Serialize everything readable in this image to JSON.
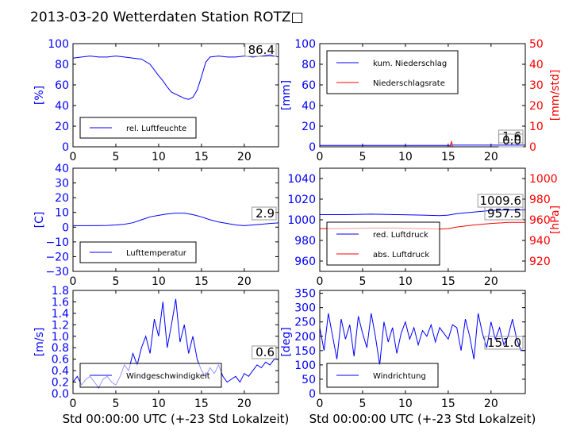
{
  "title": "2013-03-20 Wetterdaten Station ROTZ□",
  "colors": {
    "left_axis": "#0000ff",
    "right_axis": "#ff0000",
    "series_primary": "#0000ff",
    "series_secondary": "#ff0000",
    "frame": "#000000"
  },
  "chart_data": [
    {
      "type": "line",
      "ylabel": "[%]",
      "xlabel": "",
      "xlim": [
        0,
        24
      ],
      "xticks": [
        "0",
        "5",
        "10",
        "15",
        "20"
      ],
      "ylim": [
        0,
        100
      ],
      "yticks": [
        "0",
        "20",
        "40",
        "60",
        "80",
        "100"
      ],
      "legend": [
        "rel. Luftfeuchte"
      ],
      "legend_placement": "lower-left",
      "annotation": "86.4",
      "series": [
        {
          "name": "rel. Luftfeuchte",
          "x": [
            0,
            1,
            2,
            3,
            4,
            5,
            6,
            7,
            8,
            9,
            10,
            10.5,
            11,
            11.5,
            12,
            12.5,
            13,
            13.5,
            14,
            14.5,
            15,
            15.5,
            16,
            17,
            18,
            19,
            20,
            21,
            22,
            23,
            24
          ],
          "values": [
            86,
            87,
            88,
            87,
            87,
            88,
            87,
            86,
            85,
            80,
            69,
            64,
            58,
            53,
            51,
            49,
            47,
            46,
            48,
            55,
            68,
            82,
            87,
            88,
            87,
            87,
            88,
            87,
            88,
            89,
            87
          ]
        }
      ]
    },
    {
      "type": "line",
      "ylabel": "[mm]",
      "y2label": "[mm/std]",
      "xlabel": "",
      "xlim": [
        0,
        24
      ],
      "xticks": [
        "0",
        "5",
        "10",
        "15",
        "20"
      ],
      "ylim": [
        0,
        100
      ],
      "yticks": [
        "0",
        "20",
        "40",
        "60",
        "80",
        "100"
      ],
      "y2lim": [
        0,
        50
      ],
      "y2ticks": [
        "0",
        "10",
        "20",
        "30",
        "40",
        "50"
      ],
      "legend": [
        "kum. Niederschlag",
        "Niederschlagsrate"
      ],
      "legend_placement": "upper-left",
      "annotations": [
        "1.6",
        "0.0"
      ],
      "series": [
        {
          "name": "kum. Niederschlag",
          "axis": "left",
          "x": [
            0,
            15.2,
            15.4,
            24
          ],
          "values": [
            1.3,
            1.3,
            1.6,
            1.6
          ]
        },
        {
          "name": "Niederschlagsrate",
          "axis": "right",
          "x": [
            0,
            15.2,
            15.3,
            15.4,
            15.5,
            24
          ],
          "values": [
            0,
            0,
            1.5,
            2.5,
            0,
            0
          ]
        }
      ]
    },
    {
      "type": "line",
      "ylabel": "[C]",
      "xlabel": "",
      "xlim": [
        0,
        24
      ],
      "xticks": [
        "0",
        "5",
        "10",
        "15",
        "20"
      ],
      "ylim": [
        -30,
        40
      ],
      "yticks": [
        "−30",
        "−20",
        "−10",
        "0",
        "10",
        "20",
        "30",
        "40"
      ],
      "legend": [
        "Lufttemperatur"
      ],
      "legend_placement": "lower-left",
      "annotation": "2.9",
      "series": [
        {
          "name": "Lufttemperatur",
          "x": [
            0,
            2,
            4,
            5,
            6,
            7,
            8,
            9,
            10,
            11,
            12,
            13,
            14,
            15,
            16,
            17,
            18,
            19,
            20,
            21,
            22,
            23,
            24
          ],
          "values": [
            1,
            1,
            1.2,
            1.5,
            2,
            3,
            5,
            7,
            8,
            9,
            9.5,
            9.5,
            8.5,
            7,
            5,
            3.5,
            2.5,
            1.5,
            1,
            1.5,
            2,
            2.5,
            2.9
          ]
        }
      ]
    },
    {
      "type": "line",
      "ylabel": "",
      "y2label": "[hPa]",
      "xlabel": "",
      "xlim": [
        0,
        24
      ],
      "xticks": [
        "0",
        "5",
        "10",
        "15",
        "20"
      ],
      "ylim": [
        950,
        1050
      ],
      "yticks": [
        "960",
        "980",
        "1000",
        "1020",
        "1040"
      ],
      "y2lim": [
        910,
        1010
      ],
      "y2ticks": [
        "920",
        "940",
        "960",
        "980",
        "1000"
      ],
      "legend": [
        "red. Luftdruck",
        "abs. Luftdruck"
      ],
      "legend_placement": "lower-left",
      "annotations": [
        "1009.6",
        "957.5"
      ],
      "series": [
        {
          "name": "red. Luftdruck",
          "axis": "left",
          "x": [
            0,
            3,
            6,
            9,
            12,
            14,
            15,
            16,
            18,
            20,
            22,
            24
          ],
          "values": [
            1005,
            1005,
            1005.5,
            1005,
            1004.5,
            1004,
            1004.5,
            1006,
            1007.5,
            1009,
            1009.6,
            1009.5
          ]
        },
        {
          "name": "abs. Luftdruck",
          "axis": "right",
          "x": [
            0,
            3,
            6,
            9,
            12,
            14,
            15,
            16,
            18,
            20,
            22,
            24
          ],
          "values": [
            951.5,
            951.5,
            952,
            952,
            951.5,
            951,
            951.5,
            953,
            955,
            956.5,
            957.5,
            957.5
          ]
        }
      ]
    },
    {
      "type": "line",
      "ylabel": "[m/s]",
      "xlabel": "Std 00:00:00 UTC (+-23 Std Lokalzeit)",
      "xlim": [
        0,
        24
      ],
      "xticks": [
        "0",
        "5",
        "10",
        "15",
        "20"
      ],
      "ylim": [
        0,
        1.8
      ],
      "yticks": [
        "0.0",
        "0.2",
        "0.4",
        "0.6",
        "0.8",
        "1.0",
        "1.2",
        "1.4",
        "1.6",
        "1.8"
      ],
      "legend": [
        "Windgeschwindigkeit"
      ],
      "legend_placement": "lower-left",
      "annotation": "0.6",
      "series": [
        {
          "name": "Windgeschwindigkeit",
          "x": [
            0,
            0.5,
            1,
            1.5,
            2,
            2.5,
            3,
            3.5,
            4,
            4.5,
            5,
            5.5,
            6,
            6.5,
            7,
            7.5,
            8,
            8.5,
            9,
            9.5,
            10,
            10.5,
            11,
            11.5,
            12,
            12.5,
            13,
            13.5,
            14,
            14.5,
            15,
            15.5,
            16,
            16.5,
            17,
            17.5,
            18,
            18.5,
            19,
            19.5,
            20,
            20.5,
            21,
            21.5,
            22,
            22.5,
            23,
            23.5,
            24
          ],
          "values": [
            0.2,
            0.3,
            0.15,
            0.25,
            0.3,
            0.2,
            0.1,
            0.25,
            0.3,
            0.2,
            0.15,
            0.3,
            0.5,
            0.4,
            0.7,
            0.5,
            0.8,
            1.0,
            0.7,
            1.3,
            1.0,
            1.6,
            0.8,
            1.2,
            1.65,
            0.9,
            1.2,
            0.7,
            1.0,
            0.6,
            0.4,
            0.3,
            0.45,
            0.35,
            0.5,
            0.3,
            0.2,
            0.25,
            0.3,
            0.2,
            0.35,
            0.3,
            0.4,
            0.5,
            0.45,
            0.55,
            0.5,
            0.6,
            0.6
          ]
        }
      ]
    },
    {
      "type": "line",
      "ylabel": "[deg]",
      "xlabel": "Std 00:00:00 UTC (+-23 Std Lokalzeit)",
      "xlim": [
        0,
        24
      ],
      "xticks": [
        "0",
        "5",
        "10",
        "15",
        "20"
      ],
      "ylim": [
        0,
        360
      ],
      "yticks": [
        "0",
        "50",
        "100",
        "150",
        "200",
        "250",
        "300",
        "350"
      ],
      "legend": [
        "Windrichtung"
      ],
      "legend_placement": "lower-left",
      "annotation": "151.0",
      "series": [
        {
          "name": "Windrichtung",
          "x": [
            0,
            0.5,
            1,
            1.5,
            2,
            2.5,
            3,
            3.5,
            4,
            4.5,
            5,
            5.5,
            6,
            6.5,
            7,
            7.5,
            8,
            8.5,
            9,
            9.5,
            10,
            10.5,
            11,
            11.5,
            12,
            12.5,
            13,
            13.5,
            14,
            14.5,
            15,
            15.5,
            16,
            16.5,
            17,
            17.5,
            18,
            18.5,
            19,
            19.5,
            20,
            20.5,
            21,
            21.5,
            22,
            22.5,
            23,
            23.5,
            24
          ],
          "values": [
            230,
            150,
            280,
            200,
            120,
            260,
            190,
            240,
            130,
            270,
            210,
            160,
            280,
            200,
            100,
            250,
            180,
            230,
            140,
            210,
            250,
            190,
            230,
            170,
            220,
            200,
            240,
            180,
            230,
            210,
            190,
            240,
            230,
            150,
            260,
            200,
            120,
            280,
            210,
            160,
            250,
            190,
            230,
            170,
            200,
            260,
            190,
            150,
            151
          ]
        }
      ]
    }
  ]
}
